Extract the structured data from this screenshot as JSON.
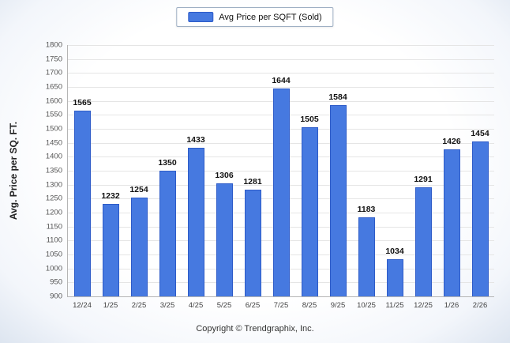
{
  "legend": {
    "label": "Avg Price per SQFT (Sold)"
  },
  "footer": {
    "copyright": "Copyright © Trendgraphix, Inc."
  },
  "colors": {
    "bar": "#4679e0",
    "bar_border": "#2d5bc8",
    "grid": "#e5e5e5",
    "axis": "#b5b5b5"
  },
  "chart_data": {
    "type": "bar",
    "categories": [
      "12/24",
      "1/25",
      "2/25",
      "3/25",
      "4/25",
      "5/25",
      "6/25",
      "7/25",
      "8/25",
      "9/25",
      "10/25",
      "11/25",
      "12/25",
      "1/26",
      "2/26"
    ],
    "values": [
      1565,
      1232,
      1254,
      1350,
      1433,
      1306,
      1281,
      1644,
      1505,
      1584,
      1183,
      1034,
      1291,
      1426,
      1454
    ],
    "series_name": "Avg Price per SQFT (Sold)",
    "title": "",
    "xlabel": "",
    "ylabel": "Avg. Price per SQ. FT.",
    "ylim": [
      900,
      1800
    ],
    "ytick_step": 50,
    "grid": true,
    "legend_position": "top"
  }
}
